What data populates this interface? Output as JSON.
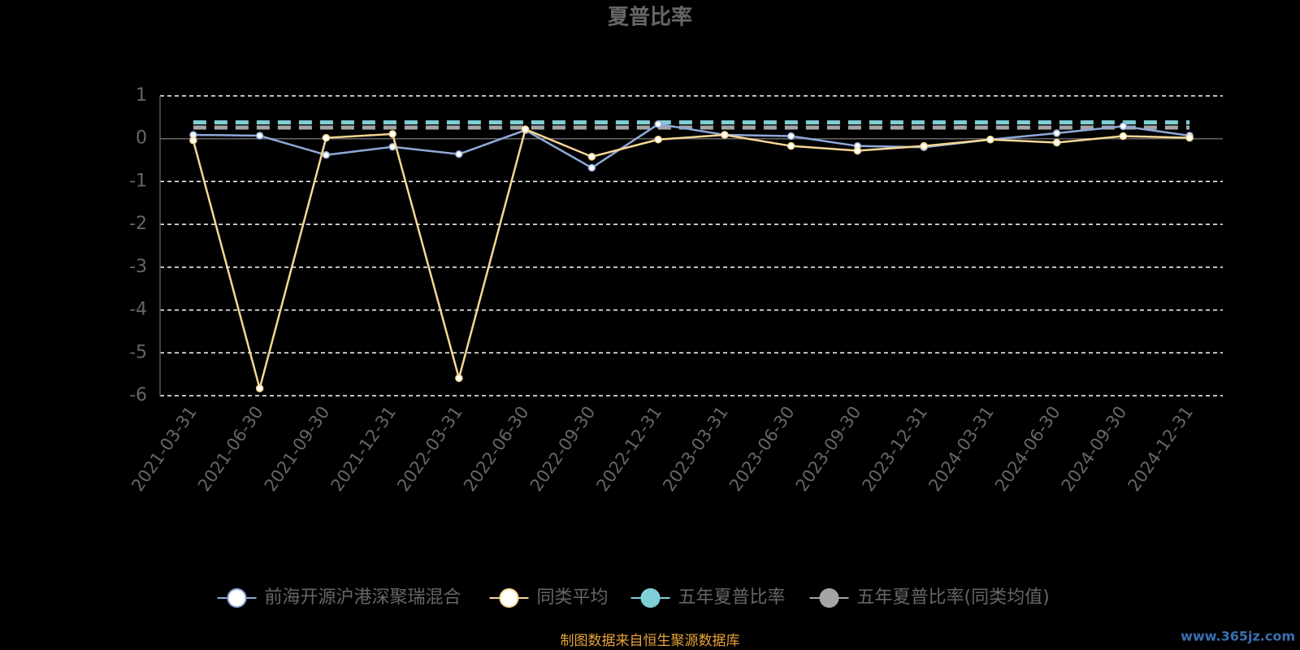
{
  "chart_data": {
    "type": "line",
    "title": "夏普比率",
    "categories": [
      "2021-03-31",
      "2021-06-30",
      "2021-09-30",
      "2021-12-31",
      "2022-03-31",
      "2022-06-30",
      "2022-09-30",
      "2022-12-31",
      "2023-03-31",
      "2023-06-30",
      "2023-09-30",
      "2023-12-31",
      "2024-03-31",
      "2024-06-30",
      "2024-09-30",
      "2024-12-31"
    ],
    "series": [
      {
        "name": "前海开源沪港深聚瑞混合",
        "color": "#8fa9d9",
        "dashed": false,
        "values": [
          0.09,
          0.07,
          -0.38,
          -0.19,
          -0.36,
          0.2,
          -0.68,
          0.34,
          0.09,
          0.06,
          -0.17,
          -0.2,
          -0.02,
          0.13,
          0.29,
          0.07
        ]
      },
      {
        "name": "同类平均",
        "color": "#f7d793",
        "dashed": false,
        "values": [
          -0.04,
          -5.83,
          0.02,
          0.11,
          -5.59,
          0.22,
          -0.42,
          -0.02,
          0.09,
          -0.17,
          -0.28,
          -0.17,
          -0.02,
          -0.09,
          0.06,
          0.02
        ]
      },
      {
        "name": "五年夏普比率",
        "color": "#7fd0d6",
        "dashed": true,
        "values": [
          0.38,
          0.38,
          0.38,
          0.38,
          0.38,
          0.38,
          0.38,
          0.38,
          0.38,
          0.38,
          0.38,
          0.38,
          0.38,
          0.38,
          0.38,
          0.38
        ]
      },
      {
        "name": "五年夏普比率(同类均值)",
        "color": "#a5a5a5",
        "dashed": true,
        "values": [
          0.26,
          0.26,
          0.26,
          0.26,
          0.26,
          0.26,
          0.26,
          0.26,
          0.26,
          0.26,
          0.26,
          0.26,
          0.26,
          0.26,
          0.26,
          0.26
        ]
      }
    ],
    "ylim": [
      -6,
      1
    ],
    "yticks": [
      -6,
      -5,
      -4,
      -3,
      -2,
      -1,
      0,
      1
    ],
    "grid": true,
    "source": "制图数据来自恒生聚源数据库",
    "watermark": "www.365jz.com"
  }
}
